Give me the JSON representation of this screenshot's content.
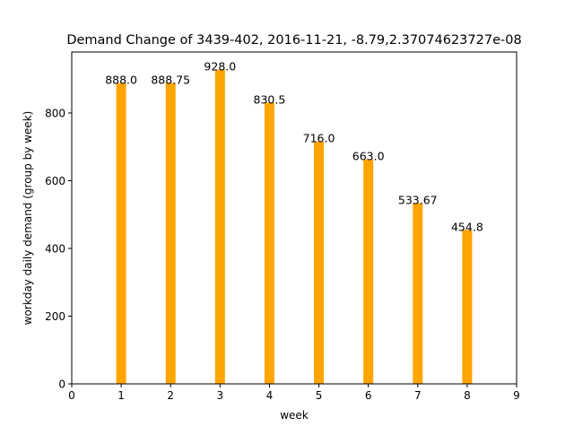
{
  "chart_data": {
    "type": "bar",
    "title": "Demand Change of 3439-402, 2016-11-21, -8.79,2.37074623727e-08",
    "xlabel": "week",
    "ylabel": "workday daily demand (group by week)",
    "x": [
      1,
      2,
      3,
      4,
      5,
      6,
      7,
      8
    ],
    "values": [
      888.0,
      888.75,
      928.0,
      830.5,
      716.0,
      663.0,
      533.67,
      454.8
    ],
    "data_labels": [
      "888.0",
      "888.75",
      "928.0",
      "830.5",
      "716.0",
      "663.0",
      "533.67",
      "454.8"
    ],
    "xlim": [
      0,
      9
    ],
    "ylim": [
      0,
      980
    ],
    "xticks": [
      0,
      1,
      2,
      3,
      4,
      5,
      6,
      7,
      8,
      9
    ],
    "yticks": [
      0,
      200,
      400,
      600,
      800
    ],
    "bar_color": "#ffa500",
    "grid": false,
    "legend": false
  }
}
